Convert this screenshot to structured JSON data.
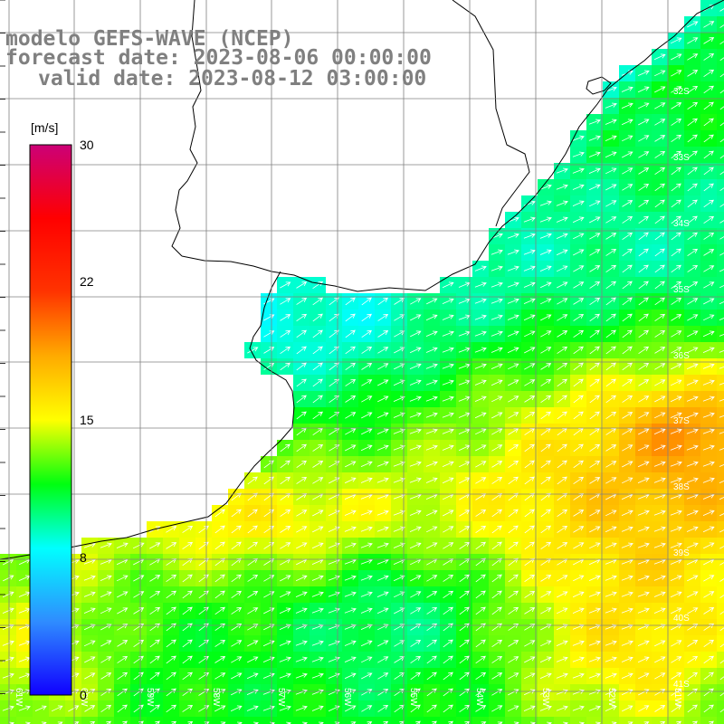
{
  "title": {
    "model": "modelo GEFS-WAVE (NCEP)",
    "forecast": "forecast date: 2023-08-06 00:00:00",
    "valid": "valid date: 2023-08-12 03:00:00"
  },
  "colorbar": {
    "unit": "[m/s]",
    "ticks": [
      "30",
      "22",
      "15",
      "8",
      "0"
    ],
    "min": 0,
    "max": 30,
    "stops": [
      {
        "v": 0,
        "c": "#1000ff"
      },
      {
        "v": 4,
        "c": "#2f8cff"
      },
      {
        "v": 8,
        "c": "#00ffff"
      },
      {
        "v": 11.5,
        "c": "#00ff10"
      },
      {
        "v": 15,
        "c": "#ffff00"
      },
      {
        "v": 18.5,
        "c": "#ffaa00"
      },
      {
        "v": 22,
        "c": "#ff3300"
      },
      {
        "v": 26,
        "c": "#ff0000"
      },
      {
        "v": 30,
        "c": "#cc0077"
      }
    ]
  },
  "lon_labels": [
    "61W",
    "60W",
    "59W",
    "58W",
    "57W",
    "56W",
    "55W",
    "54W",
    "53W",
    "52W",
    "51W"
  ],
  "lat_labels": [
    "32S",
    "33S",
    "34S",
    "35S",
    "36S",
    "37S",
    "38S",
    "39S",
    "40S",
    "41S"
  ],
  "colors": {
    "land": "#ffffff",
    "coast": "#000000",
    "grid": "#808080",
    "arrow": "#ffffff",
    "title": "#808080"
  }
}
